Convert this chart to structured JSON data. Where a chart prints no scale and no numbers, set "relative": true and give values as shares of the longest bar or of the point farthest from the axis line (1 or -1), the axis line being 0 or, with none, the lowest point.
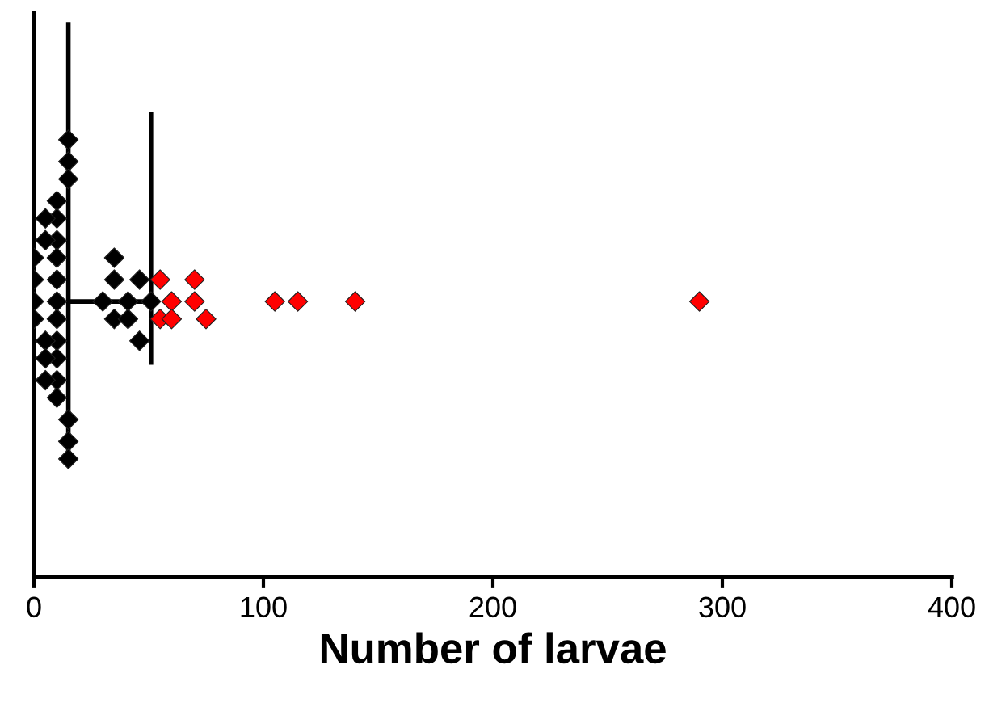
{
  "chart_data": {
    "type": "scatter",
    "xlabel": "Number of larvae",
    "relative": true,
    "tick_labels": "x",
    "grid": false,
    "legend": false,
    "xlim": [
      0,
      400
    ],
    "xticks": [
      0,
      100,
      200,
      300,
      400
    ],
    "series": [
      {
        "color": "#000000",
        "marker": "diamond",
        "x": [
          15,
          15,
          15,
          15,
          15,
          15,
          10,
          10,
          10,
          10,
          10,
          10,
          10,
          10,
          10,
          10,
          10,
          5,
          5,
          5,
          5,
          5,
          0,
          0,
          0,
          0,
          35,
          35,
          46,
          30,
          41,
          51,
          35,
          41,
          46
        ],
        "values": [
          1.0,
          0.95,
          0.91,
          0.36,
          0.31,
          0.27,
          0.86,
          0.82,
          0.77,
          0.73,
          0.68,
          0.63,
          0.59,
          0.54,
          0.5,
          0.45,
          0.41,
          0.82,
          0.77,
          0.54,
          0.5,
          0.45,
          0.73,
          0.68,
          0.63,
          0.59,
          0.73,
          0.68,
          0.68,
          0.63,
          0.63,
          0.63,
          0.59,
          0.59,
          0.54
        ]
      },
      {
        "color": "#ff0000",
        "marker": "diamond",
        "x": [
          55,
          70,
          60,
          70,
          105,
          115,
          140,
          290,
          55,
          60,
          75
        ],
        "values": [
          0.68,
          0.68,
          0.63,
          0.63,
          0.63,
          0.63,
          0.63,
          0.63,
          0.59,
          0.59,
          0.59
        ]
      },
      {
        "type": "line",
        "marker": "none",
        "color": "#000000",
        "x": [
          15,
          51
        ],
        "values": [
          0.63,
          0.63
        ]
      }
    ],
    "ref_lines": [
      {
        "axis": "x",
        "value": 15
      },
      {
        "axis": "x",
        "value": 51
      }
    ]
  }
}
